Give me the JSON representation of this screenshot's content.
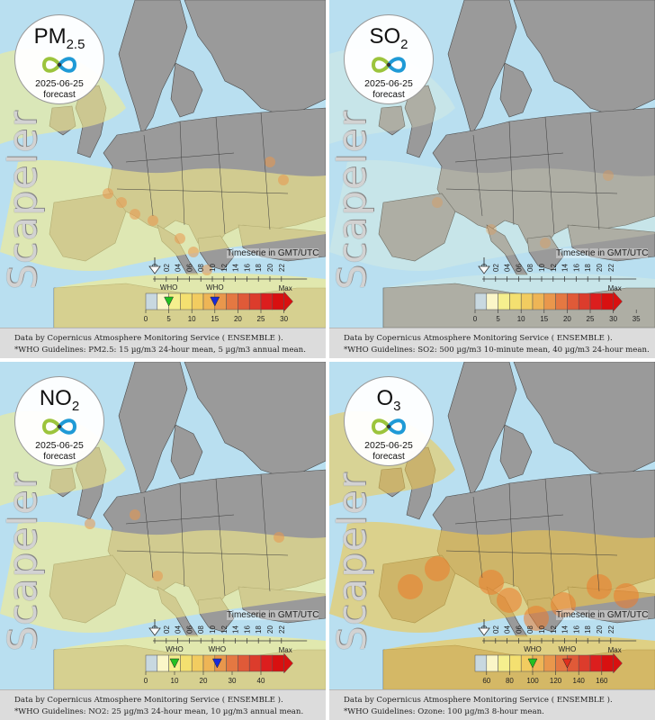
{
  "panels": [
    {
      "pollutant_main": "PM",
      "pollutant_sub": "2.5",
      "date": "2025-06-25",
      "forecast": "forecast",
      "brand": "Scapeler",
      "timeserie": "Timeserie in GMT/UTC",
      "hours": [
        "00",
        "02",
        "04",
        "06",
        "08",
        "10",
        "12",
        "14",
        "16",
        "18",
        "20",
        "22"
      ],
      "ticks": [
        {
          "v": "0",
          "i": 0
        },
        {
          "v": "5",
          "i": 2
        },
        {
          "v": "10",
          "i": 4
        },
        {
          "v": "15",
          "i": 6
        },
        {
          "v": "20",
          "i": 8
        },
        {
          "v": "25",
          "i": 10
        },
        {
          "v": "30",
          "i": 12
        }
      ],
      "who": [
        {
          "label": "WHO",
          "i": 2,
          "color": "#22c022"
        },
        {
          "label": "WHO",
          "i": 6,
          "color": "#1a2ad8"
        }
      ],
      "max_label": "Max",
      "caption_line1": "Data by Copernicus Atmosphere Monitoring Service ( ENSEMBLE ).",
      "caption_line2": "*WHO Guidelines: PM2.5: 15 µg/m3 24-hour mean, 5 µg/m3 annual mean."
    },
    {
      "pollutant_main": "SO",
      "pollutant_sub": "2",
      "date": "2025-06-25",
      "forecast": "forecast",
      "brand": "Scapeler",
      "timeserie": "Timeserie in GMT/UTC",
      "hours": [
        "00",
        "02",
        "04",
        "06",
        "08",
        "10",
        "12",
        "14",
        "16",
        "18",
        "20",
        "22"
      ],
      "ticks": [
        {
          "v": "0",
          "i": 0
        },
        {
          "v": "5",
          "i": 2
        },
        {
          "v": "10",
          "i": 4
        },
        {
          "v": "15",
          "i": 6
        },
        {
          "v": "20",
          "i": 8
        },
        {
          "v": "25",
          "i": 10
        },
        {
          "v": "30",
          "i": 12
        },
        {
          "v": "35",
          "i": 14
        }
      ],
      "who": [],
      "max_label": "Max",
      "caption_line1": "Data by Copernicus Atmosphere Monitoring Service ( ENSEMBLE ).",
      "caption_line2": "*WHO Guidelines: SO2: 500 µg/m3 10-minute mean, 40 µg/m3 24-hour mean."
    },
    {
      "pollutant_main": "NO",
      "pollutant_sub": "2",
      "date": "2025-06-25",
      "forecast": "forecast",
      "brand": "Scapeler",
      "timeserie": "Timeserie in GMT/UTC",
      "hours": [
        "00",
        "02",
        "04",
        "06",
        "08",
        "10",
        "12",
        "14",
        "16",
        "18",
        "20",
        "22"
      ],
      "ticks": [
        {
          "v": "0",
          "i": 0
        },
        {
          "v": "10",
          "i": 2.5
        },
        {
          "v": "20",
          "i": 5
        },
        {
          "v": "30",
          "i": 7.5
        },
        {
          "v": "40",
          "i": 10
        }
      ],
      "who": [
        {
          "label": "WHO",
          "i": 2.5,
          "color": "#22c022"
        },
        {
          "label": "WHO",
          "i": 6.2,
          "color": "#1a2ad8"
        }
      ],
      "max_label": "Max",
      "caption_line1": "Data by Copernicus Atmosphere Monitoring Service ( ENSEMBLE ).",
      "caption_line2": "*WHO Guidelines: NO2: 25 µg/m3 24-hour mean, 10 µg/m3 annual mean."
    },
    {
      "pollutant_main": "O",
      "pollutant_sub": "3",
      "date": "2025-06-25",
      "forecast": "forecast",
      "brand": "Scapeler",
      "timeserie": "Timeserie in GMT/UTC",
      "hours": [
        "00",
        "02",
        "04",
        "06",
        "08",
        "10",
        "12",
        "14",
        "16",
        "18",
        "20",
        "22"
      ],
      "ticks": [
        {
          "v": "60",
          "i": 1
        },
        {
          "v": "80",
          "i": 3
        },
        {
          "v": "100",
          "i": 5
        },
        {
          "v": "120",
          "i": 7
        },
        {
          "v": "140",
          "i": 9
        },
        {
          "v": "160",
          "i": 11
        }
      ],
      "who": [
        {
          "label": "WHO",
          "i": 5,
          "color": "#22c022"
        },
        {
          "label": "WHO",
          "i": 8,
          "color": "#e0301e"
        }
      ],
      "max_label": "Max",
      "caption_line1": "Data by Copernicus Atmosphere Monitoring Service ( ENSEMBLE ).",
      "caption_line2": "*WHO Guidelines: Ozone: 100 µg/m3 8-hour mean."
    }
  ],
  "colors": {
    "sea": "#b9dff0",
    "land": "#9a9a9a",
    "caption_bg": "#dcdcdc",
    "scale": [
      "#c8d8e0",
      "#fbf6c8",
      "#f5ef8e",
      "#f4e070",
      "#f2cc60",
      "#eeb556",
      "#e9974c",
      "#e47842",
      "#e05a38",
      "#dc3c2c",
      "#dc1e1e",
      "#d81010"
    ]
  }
}
